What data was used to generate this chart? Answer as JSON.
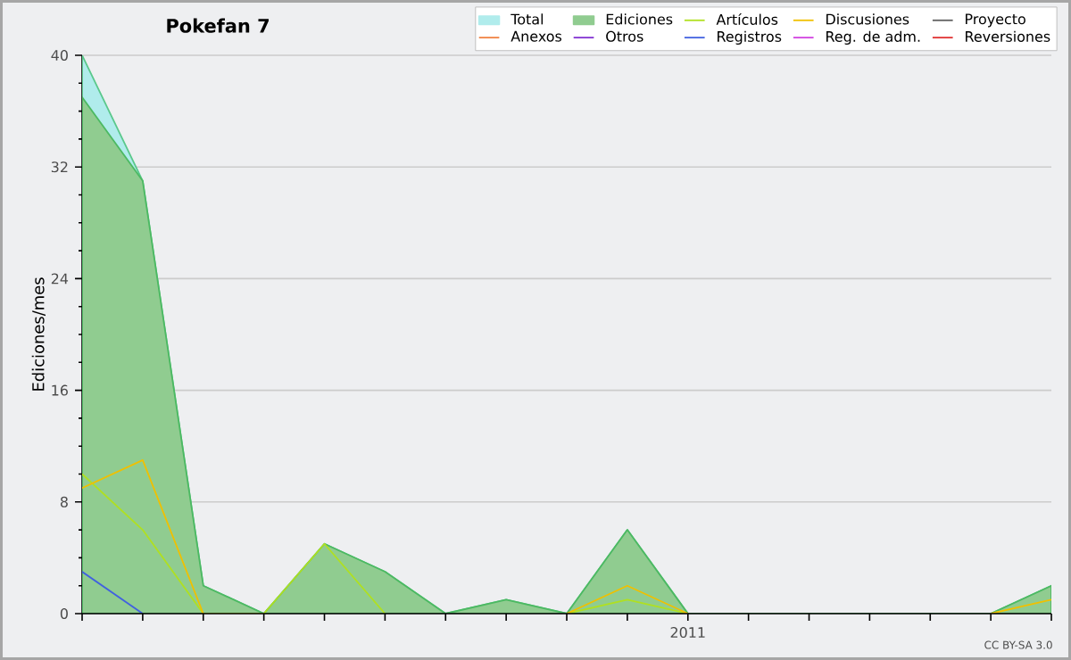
{
  "chart_data": {
    "type": "line",
    "title": "Pokefan 7",
    "ylabel": "Ediciones/mes",
    "categories": [
      null,
      null,
      null,
      null,
      null,
      null,
      null,
      null,
      null,
      null,
      "2011",
      null,
      null,
      null,
      null,
      null,
      null
    ],
    "ylim": [
      0,
      40
    ],
    "yticks": [
      0,
      8,
      16,
      24,
      32,
      40
    ],
    "grid": "y",
    "legend": "top right",
    "line_style": "solid",
    "annotations": [
      "CC BY-SA 3.0"
    ],
    "series": [
      {
        "name": "Total",
        "type": "area",
        "color": "#b0ecec",
        "values": [
          40,
          31,
          2,
          0,
          5,
          3,
          0,
          1,
          0,
          6,
          0,
          0,
          0,
          0,
          0,
          0,
          2
        ]
      },
      {
        "name": "Ediciones",
        "type": "area",
        "color": "#90cc90",
        "values": [
          37,
          31,
          2,
          0,
          5,
          3,
          0,
          1,
          0,
          6,
          0,
          0,
          0,
          0,
          0,
          0,
          2
        ]
      },
      {
        "name": "Artículos",
        "color": "#b0e020",
        "values": [
          10,
          6,
          0,
          0,
          5,
          0,
          null,
          null,
          0,
          1,
          0,
          null,
          null,
          null,
          null,
          null,
          null
        ]
      },
      {
        "name": "Discusiones",
        "color": "#f0c000",
        "values": [
          9,
          11,
          0,
          null,
          null,
          null,
          null,
          null,
          0,
          2,
          0,
          null,
          null,
          null,
          null,
          0,
          1
        ]
      },
      {
        "name": "Proyecto",
        "color": "#606060",
        "values": [
          null,
          null,
          null,
          null,
          null,
          null,
          null,
          null,
          null,
          null,
          null,
          null,
          null,
          null,
          null,
          null,
          null
        ]
      },
      {
        "name": "Anexos",
        "color": "#f08040",
        "values": [
          null,
          null,
          null,
          null,
          null,
          null,
          null,
          null,
          null,
          null,
          null,
          null,
          null,
          null,
          null,
          null,
          null
        ]
      },
      {
        "name": "Otros",
        "color": "#8030d0",
        "values": [
          null,
          null,
          null,
          null,
          null,
          null,
          null,
          null,
          null,
          null,
          null,
          null,
          null,
          null,
          null,
          null,
          null
        ]
      },
      {
        "name": "Registros",
        "color": "#4060e0",
        "values": [
          3,
          0,
          null,
          null,
          null,
          null,
          null,
          null,
          null,
          null,
          null,
          null,
          null,
          null,
          null,
          null,
          null
        ]
      },
      {
        "name": "Reg. de adm.",
        "color": "#d040e0",
        "values": [
          null,
          null,
          null,
          null,
          null,
          null,
          null,
          null,
          null,
          null,
          null,
          null,
          null,
          null,
          null,
          null,
          null
        ]
      },
      {
        "name": "Reversiones",
        "color": "#e03030",
        "values": [
          null,
          null,
          null,
          null,
          null,
          null,
          null,
          null,
          null,
          null,
          null,
          null,
          null,
          null,
          null,
          null,
          null
        ]
      }
    ]
  }
}
